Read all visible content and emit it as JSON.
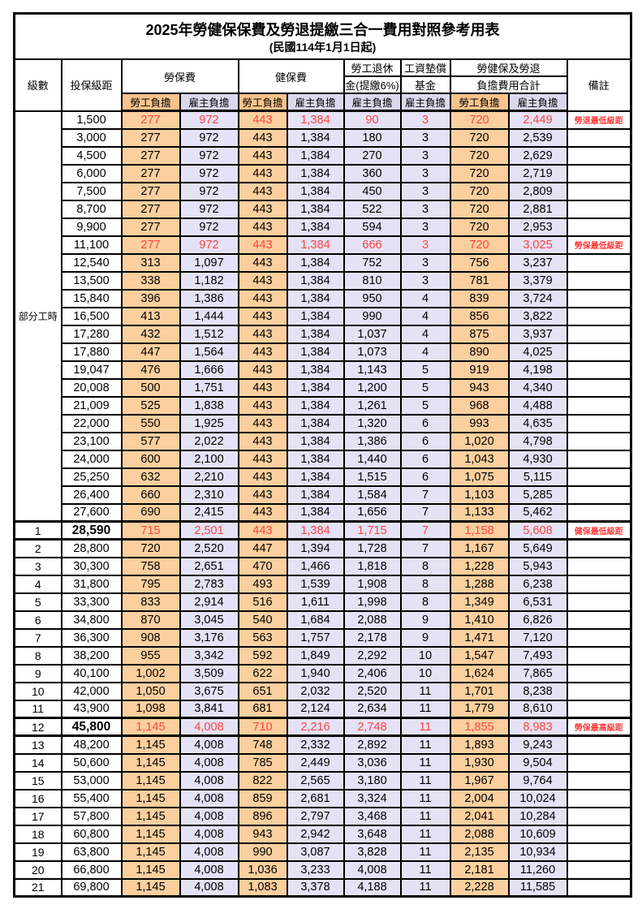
{
  "title": "2025年勞健保保費及勞退提繳三合一費用對照參考用表",
  "subtitle": "(民國114年1月1日起)",
  "colors": {
    "worker_col_bg": "#fbcf9e",
    "worker_header_bg": "#f8c28b",
    "employer_col_bg": "#e4e2f4",
    "employer_header_bg": "#dbd8ee",
    "highlight_text": "#ff4444",
    "remark_text": "#ff3b3b",
    "grid": "#000000"
  },
  "table": {
    "header": {
      "level": "級數",
      "bracket": "投保級距",
      "labor_insurance": "勞保費",
      "health_insurance": "健保費",
      "pension_line1": "勞工退休",
      "pension_line2": "金(提繳6%)",
      "wage_fund_line1": "工資墊償",
      "wage_fund_line2": "基金",
      "total_line1": "勞健保及勞退",
      "total_line2": "負擔費用合計",
      "remark": "備註",
      "worker": "勞工負擔",
      "employer": "雇主負擔"
    },
    "part_time": {
      "label": "部分工時",
      "rowspan": 23
    },
    "red_rows": [
      0,
      7,
      23,
      34
    ],
    "thick_rows": [
      23,
      34
    ],
    "bold_rows": [
      23,
      34
    ],
    "rows": [
      [
        "",
        "1,500",
        "277",
        "972",
        "443",
        "1,384",
        "90",
        "3",
        "720",
        "2,449",
        "勞退最低級距"
      ],
      [
        "",
        "3,000",
        "277",
        "972",
        "443",
        "1,384",
        "180",
        "3",
        "720",
        "2,539",
        ""
      ],
      [
        "",
        "4,500",
        "277",
        "972",
        "443",
        "1,384",
        "270",
        "3",
        "720",
        "2,629",
        ""
      ],
      [
        "",
        "6,000",
        "277",
        "972",
        "443",
        "1,384",
        "360",
        "3",
        "720",
        "2,719",
        ""
      ],
      [
        "",
        "7,500",
        "277",
        "972",
        "443",
        "1,384",
        "450",
        "3",
        "720",
        "2,809",
        ""
      ],
      [
        "",
        "8,700",
        "277",
        "972",
        "443",
        "1,384",
        "522",
        "3",
        "720",
        "2,881",
        ""
      ],
      [
        "",
        "9,900",
        "277",
        "972",
        "443",
        "1,384",
        "594",
        "3",
        "720",
        "2,953",
        ""
      ],
      [
        "",
        "11,100",
        "277",
        "972",
        "443",
        "1,384",
        "666",
        "3",
        "720",
        "3,025",
        "勞保最低級距"
      ],
      [
        "",
        "12,540",
        "313",
        "1,097",
        "443",
        "1,384",
        "752",
        "3",
        "756",
        "3,237",
        ""
      ],
      [
        "",
        "13,500",
        "338",
        "1,182",
        "443",
        "1,384",
        "810",
        "3",
        "781",
        "3,379",
        ""
      ],
      [
        "",
        "15,840",
        "396",
        "1,386",
        "443",
        "1,384",
        "950",
        "4",
        "839",
        "3,724",
        ""
      ],
      [
        "",
        "16,500",
        "413",
        "1,444",
        "443",
        "1,384",
        "990",
        "4",
        "856",
        "3,822",
        ""
      ],
      [
        "",
        "17,280",
        "432",
        "1,512",
        "443",
        "1,384",
        "1,037",
        "4",
        "875",
        "3,937",
        ""
      ],
      [
        "",
        "17,880",
        "447",
        "1,564",
        "443",
        "1,384",
        "1,073",
        "4",
        "890",
        "4,025",
        ""
      ],
      [
        "",
        "19,047",
        "476",
        "1,666",
        "443",
        "1,384",
        "1,143",
        "5",
        "919",
        "4,198",
        ""
      ],
      [
        "",
        "20,008",
        "500",
        "1,751",
        "443",
        "1,384",
        "1,200",
        "5",
        "943",
        "4,340",
        ""
      ],
      [
        "",
        "21,009",
        "525",
        "1,838",
        "443",
        "1,384",
        "1,261",
        "5",
        "968",
        "4,488",
        ""
      ],
      [
        "",
        "22,000",
        "550",
        "1,925",
        "443",
        "1,384",
        "1,320",
        "6",
        "993",
        "4,635",
        ""
      ],
      [
        "",
        "23,100",
        "577",
        "2,022",
        "443",
        "1,384",
        "1,386",
        "6",
        "1,020",
        "4,798",
        ""
      ],
      [
        "",
        "24,000",
        "600",
        "2,100",
        "443",
        "1,384",
        "1,440",
        "6",
        "1,043",
        "4,930",
        ""
      ],
      [
        "",
        "25,250",
        "632",
        "2,210",
        "443",
        "1,384",
        "1,515",
        "6",
        "1,075",
        "5,115",
        ""
      ],
      [
        "",
        "26,400",
        "660",
        "2,310",
        "443",
        "1,384",
        "1,584",
        "7",
        "1,103",
        "5,285",
        ""
      ],
      [
        "",
        "27,600",
        "690",
        "2,415",
        "443",
        "1,384",
        "1,656",
        "7",
        "1,133",
        "5,462",
        ""
      ],
      [
        "1",
        "28,590",
        "715",
        "2,501",
        "443",
        "1,384",
        "1,715",
        "7",
        "1,158",
        "5,608",
        "健保最低級距"
      ],
      [
        "2",
        "28,800",
        "720",
        "2,520",
        "447",
        "1,394",
        "1,728",
        "7",
        "1,167",
        "5,649",
        ""
      ],
      [
        "3",
        "30,300",
        "758",
        "2,651",
        "470",
        "1,466",
        "1,818",
        "8",
        "1,228",
        "5,943",
        ""
      ],
      [
        "4",
        "31,800",
        "795",
        "2,783",
        "493",
        "1,539",
        "1,908",
        "8",
        "1,288",
        "6,238",
        ""
      ],
      [
        "5",
        "33,300",
        "833",
        "2,914",
        "516",
        "1,611",
        "1,998",
        "8",
        "1,349",
        "6,531",
        ""
      ],
      [
        "6",
        "34,800",
        "870",
        "3,045",
        "540",
        "1,684",
        "2,088",
        "9",
        "1,410",
        "6,826",
        ""
      ],
      [
        "7",
        "36,300",
        "908",
        "3,176",
        "563",
        "1,757",
        "2,178",
        "9",
        "1,471",
        "7,120",
        ""
      ],
      [
        "8",
        "38,200",
        "955",
        "3,342",
        "592",
        "1,849",
        "2,292",
        "10",
        "1,547",
        "7,493",
        ""
      ],
      [
        "9",
        "40,100",
        "1,002",
        "3,509",
        "622",
        "1,940",
        "2,406",
        "10",
        "1,624",
        "7,865",
        ""
      ],
      [
        "10",
        "42,000",
        "1,050",
        "3,675",
        "651",
        "2,032",
        "2,520",
        "11",
        "1,701",
        "8,238",
        ""
      ],
      [
        "11",
        "43,900",
        "1,098",
        "3,841",
        "681",
        "2,124",
        "2,634",
        "11",
        "1,779",
        "8,610",
        ""
      ],
      [
        "12",
        "45,800",
        "1,145",
        "4,008",
        "710",
        "2,216",
        "2,748",
        "11",
        "1,855",
        "8,983",
        "勞保最高級距"
      ],
      [
        "13",
        "48,200",
        "1,145",
        "4,008",
        "748",
        "2,332",
        "2,892",
        "11",
        "1,893",
        "9,243",
        ""
      ],
      [
        "14",
        "50,600",
        "1,145",
        "4,008",
        "785",
        "2,449",
        "3,036",
        "11",
        "1,930",
        "9,504",
        ""
      ],
      [
        "15",
        "53,000",
        "1,145",
        "4,008",
        "822",
        "2,565",
        "3,180",
        "11",
        "1,967",
        "9,764",
        ""
      ],
      [
        "16",
        "55,400",
        "1,145",
        "4,008",
        "859",
        "2,681",
        "3,324",
        "11",
        "2,004",
        "10,024",
        ""
      ],
      [
        "17",
        "57,800",
        "1,145",
        "4,008",
        "896",
        "2,797",
        "3,468",
        "11",
        "2,041",
        "10,284",
        ""
      ],
      [
        "18",
        "60,800",
        "1,145",
        "4,008",
        "943",
        "2,942",
        "3,648",
        "11",
        "2,088",
        "10,609",
        ""
      ],
      [
        "19",
        "63,800",
        "1,145",
        "4,008",
        "990",
        "3,087",
        "3,828",
        "11",
        "2,135",
        "10,934",
        ""
      ],
      [
        "20",
        "66,800",
        "1,145",
        "4,008",
        "1,036",
        "3,233",
        "4,008",
        "11",
        "2,181",
        "11,260",
        ""
      ],
      [
        "21",
        "69,800",
        "1,145",
        "4,008",
        "1,083",
        "3,378",
        "4,188",
        "11",
        "2,228",
        "11,585",
        ""
      ]
    ]
  }
}
